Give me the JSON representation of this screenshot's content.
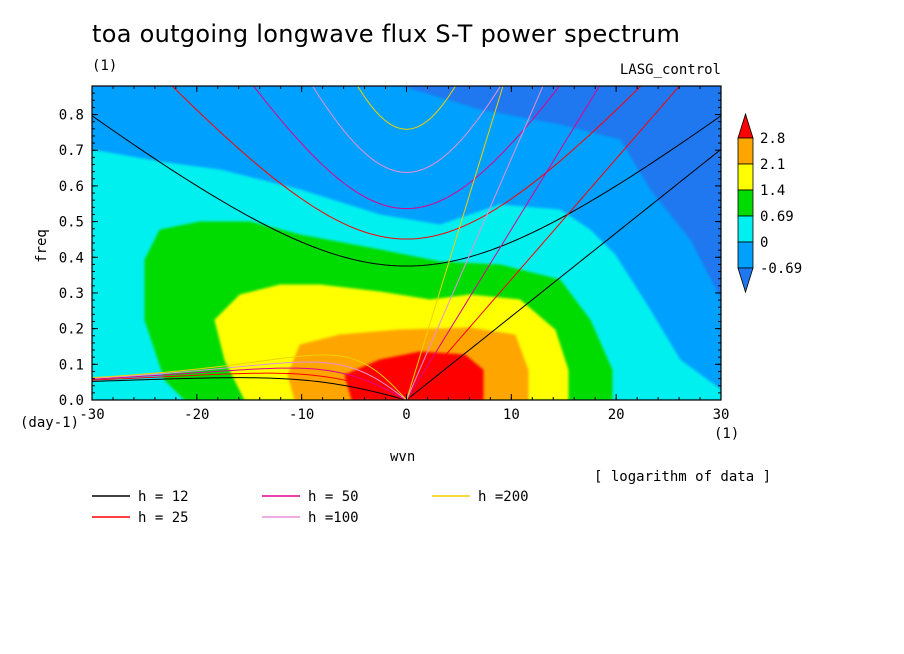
{
  "chart_data": {
    "type": "heatmap",
    "title": "toa outgoing longwave flux S-T power spectrum",
    "subtitle": "(1)",
    "run_label": "LASG_control",
    "xlabel": "wvn",
    "ylabel": "freq",
    "x_unit": "(1)",
    "y_unit": "(day-1)",
    "xlim": [
      -30,
      30
    ],
    "ylim": [
      0,
      0.88
    ],
    "x_ticks": [
      -30,
      -20,
      -10,
      0,
      10,
      20,
      30
    ],
    "y_ticks": [
      0.0,
      0.1,
      0.2,
      0.3,
      0.4,
      0.5,
      0.6,
      0.7,
      0.8
    ],
    "x_tick_labels": [
      "-30",
      "-20",
      "-10",
      "0",
      "10",
      "20",
      "30"
    ],
    "y_tick_labels": [
      "0.0",
      "0.1",
      "0.2",
      "0.3",
      "0.4",
      "0.5",
      "0.6",
      "0.7",
      "0.8"
    ],
    "colorbar": {
      "labels": [
        "2.8",
        "2.1",
        "1.4",
        "0.69",
        "0",
        "-0.69"
      ],
      "levels": [
        -0.69,
        0,
        0.69,
        1.4,
        2.1,
        2.8
      ],
      "colors": [
        "#1f78f0",
        "#00a0ff",
        "#00f0f0",
        "#00dc00",
        "#ffff00",
        "#ffa500",
        "#ff0000"
      ]
    },
    "note": "[ logarithm of data ]",
    "dispersion_curves": [
      {
        "name": "h = 12",
        "h": 12,
        "color": "#000000"
      },
      {
        "name": "h = 25",
        "h": 25,
        "color": "#ff0000"
      },
      {
        "name": "h = 50",
        "h": 50,
        "color": "#e00090"
      },
      {
        "name": "h =100",
        "h": 100,
        "color": "#e890d8"
      },
      {
        "name": "h =200",
        "h": 200,
        "color": "#f0d000"
      }
    ]
  }
}
